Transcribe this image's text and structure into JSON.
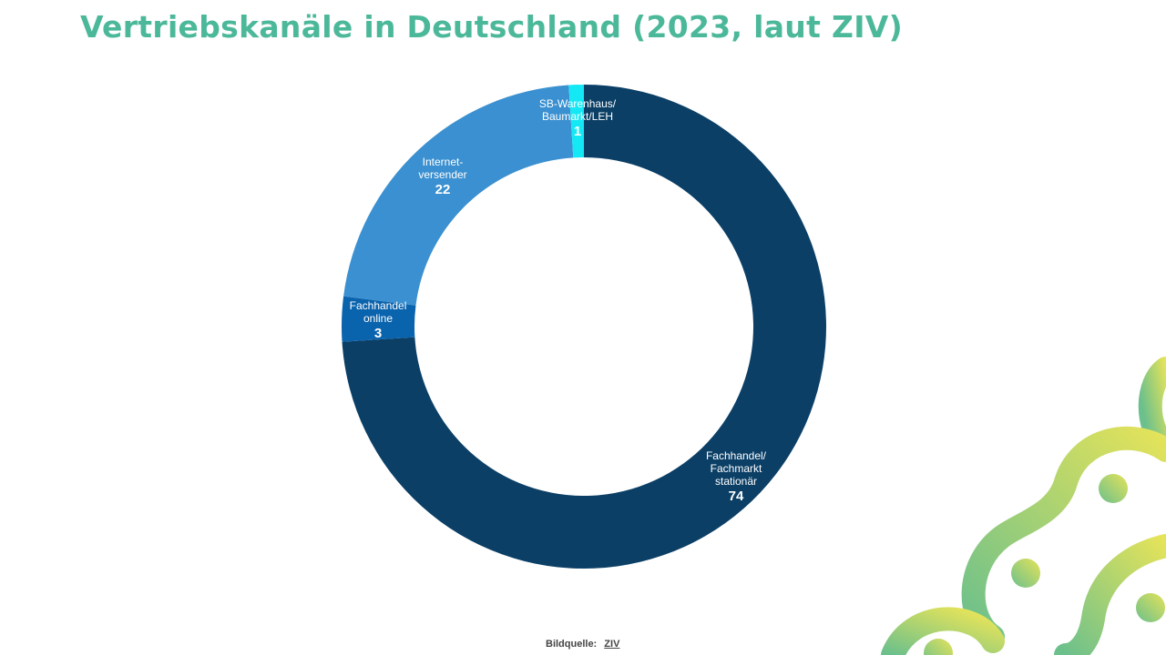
{
  "title": "Vertriebskanäle in Deutschland (2023, laut ZIV)",
  "source": {
    "label": "Bildquelle:",
    "link_text": "ZIV"
  },
  "chart_data": {
    "type": "pie",
    "variant": "donut",
    "title": "",
    "start_angle_deg": 0,
    "direction": "clockwise",
    "slices": [
      {
        "label_lines": [
          "Fachhandel/",
          "Fachmarkt",
          "stationär"
        ],
        "value": 74,
        "color": "#0b3f66"
      },
      {
        "label_lines": [
          "Fachhandel",
          "online"
        ],
        "value": 3,
        "color": "#0a63ad"
      },
      {
        "label_lines": [
          "Internet-",
          "versender"
        ],
        "value": 22,
        "color": "#3a90d0"
      },
      {
        "label_lines": [
          "SB-Warenhaus/",
          "Baumarkt/LEH"
        ],
        "value": 1,
        "color": "#15e8f5"
      }
    ]
  },
  "colors": {
    "title": "#4cb89a",
    "decoration_gradient": [
      "#e4e35a",
      "#6cc08c"
    ]
  }
}
